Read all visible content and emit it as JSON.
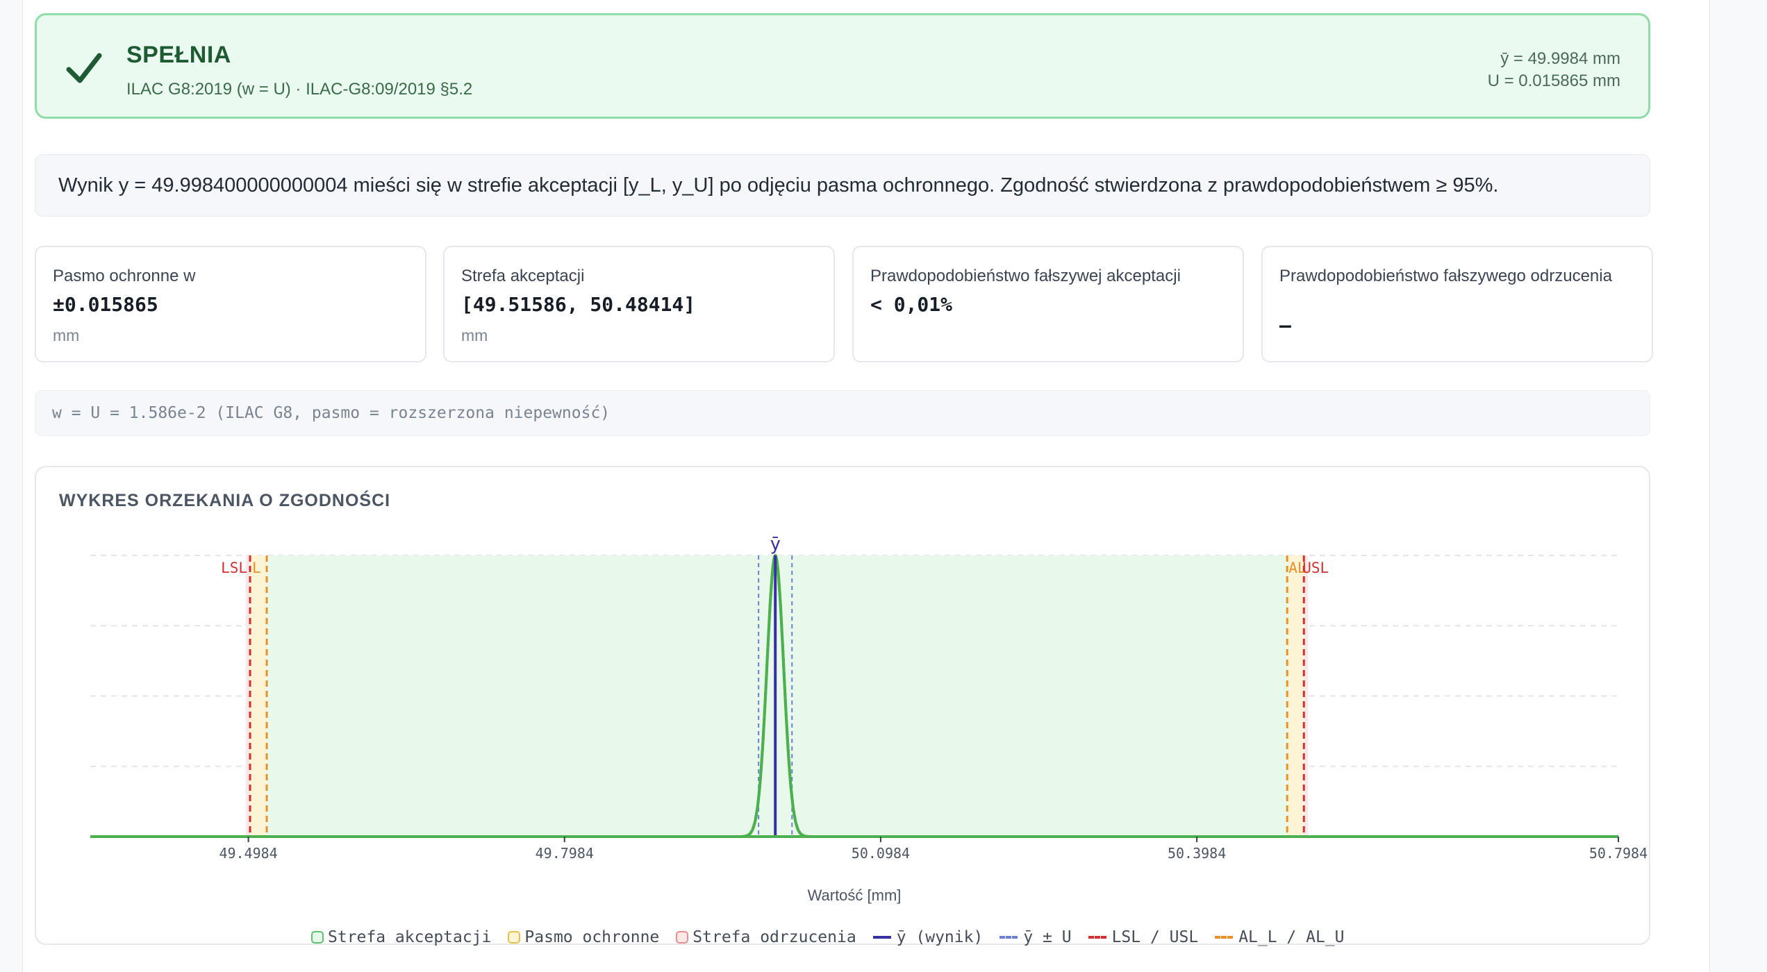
{
  "verdict": {
    "title": "SPEŁNIA",
    "subtitle": "ILAC G8:2019 (w = U) · ILAC-G8:09/2019 §5.2",
    "mean_line": "ȳ = 49.9984 mm",
    "u_line": "U = 0.015865 mm",
    "icon": "check-icon",
    "color": "#1e5a32"
  },
  "message": "Wynik y = 49.998400000000004 mieści się w strefie akceptacji [y_L, y_U] po odjęciu pasma ochronnego. Zgodność stwierdzona z prawdopodobieństwem ≥ 95%.",
  "cards": [
    {
      "label": "Pasmo ochronne w",
      "value": "±0.015865",
      "unit": "mm"
    },
    {
      "label": "Strefa akceptacji",
      "value": "[49.51586, 50.48414]",
      "unit": "mm"
    },
    {
      "label": "Prawdopodobieństwo fałszywej akceptacji",
      "value": "< 0,01%",
      "unit": ""
    },
    {
      "label": "Prawdopodobieństwo fałszywego odrzucenia",
      "value": "—",
      "unit": ""
    }
  ],
  "formula": "w = U = 1.586e-2 (ILAC G8, pasmo = rozszerzona niepewność)",
  "chart": {
    "title": "WYKRES ORZEKANIA O ZGODNOŚCI",
    "xlabel": "Wartość [mm]"
  },
  "chart_data": {
    "type": "area",
    "xlim": [
      49.3484,
      50.7984
    ],
    "x_ticks": [
      49.4984,
      49.7984,
      50.0984,
      50.3984,
      50.7984
    ],
    "x_tick_labels": [
      "49.4984",
      "49.7984",
      "50.0984",
      "50.3984",
      "50.7984"
    ],
    "mean": 49.9984,
    "U": 0.015865,
    "LSL": 49.5,
    "USL": 50.5,
    "AL_L": 49.51586,
    "AL_U": 50.48414,
    "markers": {
      "mean": "ȳ",
      "LSL": "LSL",
      "AL_L": "L",
      "AL_U": "AL",
      "USL": "USL"
    },
    "grid": true,
    "colors": {
      "acceptance": "#e8f8ea",
      "guard": "#fdf4d6",
      "rejection": "#fde7e7",
      "curve": "#4caf50",
      "mean": "#3730a3",
      "uband": "#6b7fd6",
      "limits": "#d32f2f",
      "al": "#e8912a"
    },
    "legend": [
      {
        "kind": "box",
        "label": "Strefa akceptacji",
        "fill": "#e8f8ea",
        "stroke": "#5cc46e"
      },
      {
        "kind": "box",
        "label": "Pasmo ochronne",
        "fill": "#fdf4d6",
        "stroke": "#e6c24a"
      },
      {
        "kind": "box",
        "label": "Strefa odrzucenia",
        "fill": "#fde7e7",
        "stroke": "#e88f8f"
      },
      {
        "kind": "solid",
        "label": "ȳ (wynik)",
        "color": "#3730a3"
      },
      {
        "kind": "dash",
        "label": "ȳ ± U",
        "color": "#6b7fd6"
      },
      {
        "kind": "dash",
        "label": "LSL / USL",
        "color": "#d32f2f"
      },
      {
        "kind": "dash",
        "label": "AL_L / AL_U",
        "color": "#e8912a"
      }
    ]
  }
}
